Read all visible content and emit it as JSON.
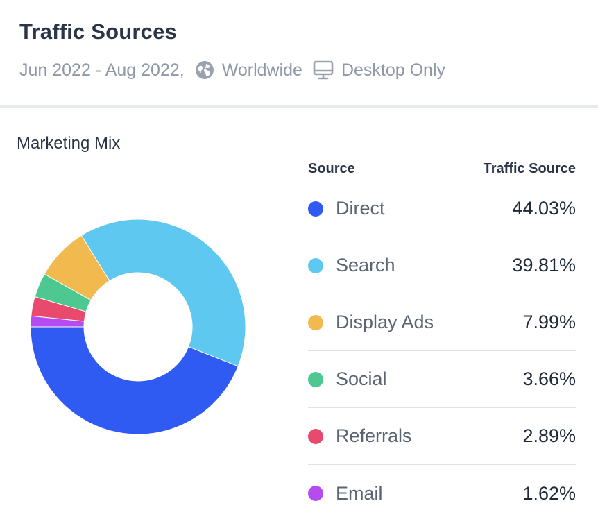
{
  "header": {
    "title": "Traffic Sources",
    "date_range": "Jun 2022 - Aug 2022,",
    "region": "Worldwide",
    "device": "Desktop Only",
    "region_icon": "globe-icon",
    "device_icon": "desktop-icon"
  },
  "section_label": "Marketing Mix",
  "legend": {
    "col_source": "Source",
    "col_value": "Traffic Source",
    "rows": [
      {
        "name": "Direct",
        "value_label": "44.03%"
      },
      {
        "name": "Search",
        "value_label": "39.81%"
      },
      {
        "name": "Display Ads",
        "value_label": "7.99%"
      },
      {
        "name": "Social",
        "value_label": "3.66%"
      },
      {
        "name": "Referrals",
        "value_label": "2.89%"
      },
      {
        "name": "Email",
        "value_label": "1.62%"
      }
    ]
  },
  "chart_data": {
    "type": "pie",
    "title": "Marketing Mix",
    "donut": true,
    "categories": [
      "Direct",
      "Search",
      "Display Ads",
      "Social",
      "Referrals",
      "Email"
    ],
    "values": [
      44.03,
      39.81,
      7.99,
      3.66,
      2.89,
      1.62
    ],
    "colors": [
      "#2f5bf3",
      "#5ec8f0",
      "#f2b94e",
      "#4ec891",
      "#e9496c",
      "#b54cf2"
    ],
    "legend_position": "right"
  }
}
